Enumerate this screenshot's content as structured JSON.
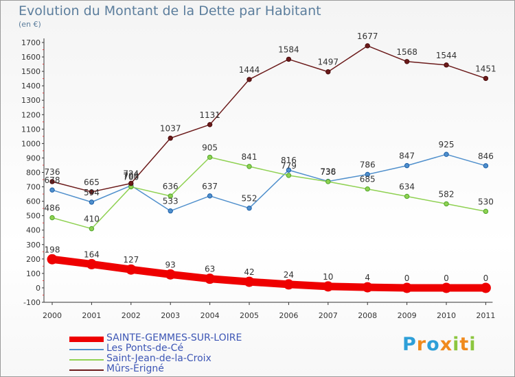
{
  "title": "Evolution du Montant de la Dette par Habitant",
  "unit": "(en €)",
  "logo": {
    "letters": [
      "P",
      "r",
      "o",
      "x",
      "i",
      "t",
      "i"
    ],
    "colors": [
      "#2e9fd8",
      "#f08a1d",
      "#2e9fd8",
      "#f08a1d",
      "#8cc63f",
      "#f08a1d",
      "#8cc63f"
    ]
  },
  "chart_data": {
    "type": "line",
    "title": "Evolution du Montant de la Dette par Habitant",
    "ylabel": "(en €)",
    "xlabel": "",
    "x": [
      "2000",
      "2001",
      "2002",
      "2003",
      "2004",
      "2005",
      "2006",
      "2007",
      "2008",
      "2009",
      "2010",
      "2011"
    ],
    "ylim": [
      -100,
      1700
    ],
    "yticks": [
      "-100",
      "0",
      "100",
      "200",
      "300",
      "400",
      "500",
      "600",
      "700",
      "800",
      "900",
      "1000",
      "1100",
      "1200",
      "1300",
      "1400",
      "1500",
      "1600",
      "1700"
    ],
    "grid": false,
    "legend_position": "bottom-left",
    "series": [
      {
        "name": "SAINTE-GEMMES-SUR-LOIRE",
        "color": "#ee0000",
        "values": [
          198,
          164,
          127,
          93,
          63,
          42,
          24,
          10,
          4,
          0,
          0,
          0
        ]
      },
      {
        "name": "Les Ponts-de-Cé",
        "color": "#4f8fcc",
        "values": [
          678,
          594,
          709,
          533,
          637,
          552,
          816,
          738,
          786,
          847,
          925,
          846
        ]
      },
      {
        "name": "Saint-Jean-de-la-Croix",
        "color": "#8fd152",
        "values": [
          486,
          410,
          700,
          636,
          905,
          841,
          779,
          736,
          685,
          634,
          582,
          530
        ]
      },
      {
        "name": "Mûrs-Erigné",
        "color": "#6b1a1a",
        "values": [
          736,
          665,
          724,
          1037,
          1131,
          1444,
          1584,
          1497,
          1677,
          1568,
          1544,
          1451
        ]
      }
    ]
  }
}
